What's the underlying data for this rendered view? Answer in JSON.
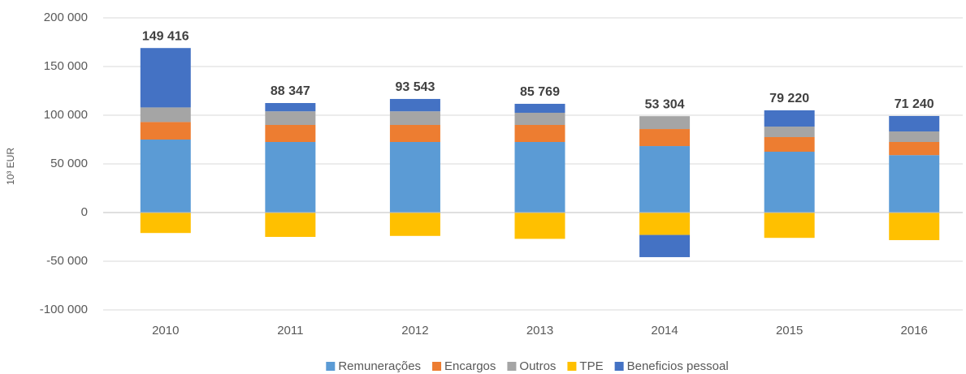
{
  "chart_data": {
    "type": "stacked_bar",
    "y_label": "10³ EUR",
    "categories": [
      "2010",
      "2011",
      "2012",
      "2013",
      "2014",
      "2015",
      "2016"
    ],
    "series": [
      {
        "name": "Remunerações",
        "color": "#5b9bd5",
        "values": [
          75000,
          72500,
          72500,
          72500,
          68300,
          62500,
          59000
        ]
      },
      {
        "name": "Encargos",
        "color": "#ed7d31",
        "values": [
          18000,
          17500,
          17500,
          17500,
          17500,
          15000,
          13500
        ]
      },
      {
        "name": "Outros",
        "color": "#a5a5a5",
        "values": [
          15000,
          14000,
          14000,
          12500,
          13200,
          10800,
          10800
        ]
      },
      {
        "name": "TPE",
        "color": "#ffc000",
        "values": [
          -21000,
          -25000,
          -24000,
          -27000,
          -23000,
          -26000,
          -28300
        ]
      },
      {
        "name": "Beneficios pessoal",
        "color": "#4472c4",
        "values": [
          61000,
          8500,
          12700,
          9200,
          -22800,
          16700,
          15900
        ]
      }
    ],
    "totals": {
      "values": [
        149416,
        88347,
        93543,
        85769,
        53304,
        79220,
        71240
      ],
      "value_labels": [
        "149 416",
        "88 347",
        "93 543",
        "85 769",
        "53 304",
        "79 220",
        "71 240"
      ]
    },
    "ylim": [
      -100000,
      200000
    ],
    "yticks": [
      {
        "value": -100000,
        "label": "-100 000"
      },
      {
        "value": -50000,
        "label": "-50 000"
      },
      0,
      {
        "value": 50000,
        "label": "50 000"
      },
      {
        "value": 100000,
        "label": "100 000"
      },
      {
        "value": 150000,
        "label": "150 000"
      },
      {
        "value": 200000,
        "label": "200 000"
      }
    ],
    "grid": true,
    "legend": "bottom"
  }
}
